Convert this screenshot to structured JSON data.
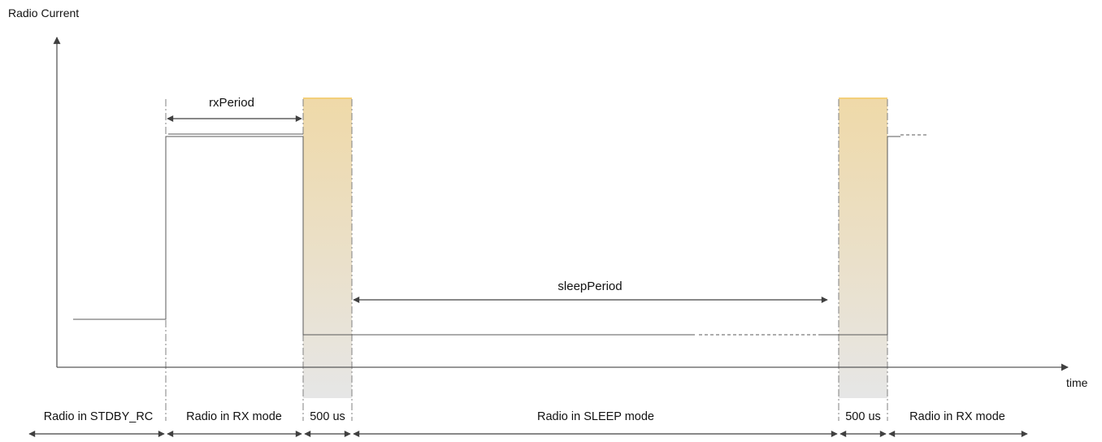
{
  "y_axis_label": "Radio Current",
  "x_axis_label": "time",
  "rx_period_label": "rxPeriod",
  "sleep_period_label": "sleepPeriod",
  "phases": [
    {
      "label": "Radio in STDBY_RC"
    },
    {
      "label": "Radio in RX mode"
    },
    {
      "label": "500 us"
    },
    {
      "label": "Radio in SLEEP mode"
    },
    {
      "label": "500 us"
    },
    {
      "label": "Radio in RX mode"
    }
  ],
  "colors": {
    "axis": "#595959",
    "guide": "#808080",
    "window_top": "#efd9a8",
    "window_bottom": "#e6e6e6"
  }
}
